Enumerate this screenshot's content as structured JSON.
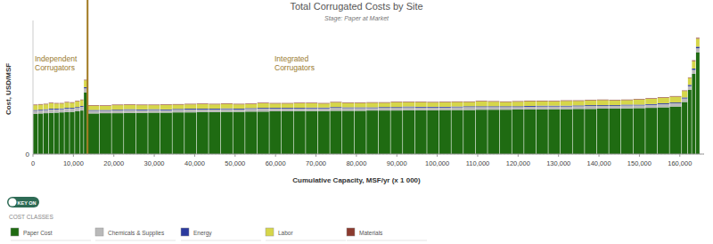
{
  "chart_data": {
    "type": "bar",
    "stacked": true,
    "title": "Total Corrugated Costs by Site",
    "subtitle": "Stage: Paper at Market",
    "y_label": "Cost, USD/MSF",
    "x_label": "Cumulative Capacity, MSF/yr (x 1 000)",
    "annotations": [
      {
        "text": [
          "Independent",
          "Corrugators"
        ]
      },
      {
        "text": [
          "Integrated",
          "Corrugators"
        ]
      }
    ],
    "divider_x": 13500,
    "key_toggle": "KEY ON",
    "legend_title": "COST CLASSES",
    "legend": "bottom",
    "grid": true,
    "xlim": [
      0,
      166000
    ],
    "ylim": [
      0,
      500
    ],
    "xticks": [
      0,
      {
        "value": 10000,
        "label": "10,000"
      },
      {
        "value": 20000,
        "label": "20,000"
      },
      {
        "value": 30000,
        "label": "30,000"
      },
      {
        "value": 40000,
        "label": "40,000"
      },
      {
        "value": 50000,
        "label": "50,000"
      },
      {
        "value": 60000,
        "label": "60,000"
      },
      {
        "value": 70000,
        "label": "70,000"
      },
      {
        "value": 80000,
        "label": "80,000"
      },
      {
        "value": 90000,
        "label": "90,000"
      },
      {
        "value": 100000,
        "label": "100,000"
      },
      {
        "value": 110000,
        "label": "110,000"
      },
      {
        "value": 120000,
        "label": "120,000"
      },
      {
        "value": 130000,
        "label": "130,000"
      },
      {
        "value": 140000,
        "label": "140,000"
      },
      {
        "value": 150000,
        "label": "150,000"
      },
      {
        "value": 160000,
        "label": "160,000"
      }
    ],
    "yticks": [
      0
    ],
    "bins": [
      0,
      1300,
      2600,
      3900,
      5200,
      6500,
      7800,
      9100,
      10400,
      11700,
      12600,
      13500,
      16500,
      19500,
      22500,
      25500,
      28500,
      31500,
      34500,
      37500,
      40500,
      43500,
      46500,
      49500,
      52500,
      55500,
      58500,
      61500,
      64500,
      67500,
      70500,
      73500,
      76500,
      79500,
      82500,
      85500,
      88500,
      91500,
      94500,
      97500,
      100500,
      103500,
      106500,
      109500,
      112500,
      115500,
      118500,
      121500,
      124500,
      127500,
      130500,
      133500,
      136500,
      139500,
      142500,
      145500,
      148500,
      151500,
      154500,
      157500,
      160500,
      162000,
      163000,
      164000,
      165000
    ],
    "series": [
      {
        "name": "Paper Cost",
        "color": "#1f6b12",
        "values": [
          150,
          152,
          153,
          154,
          155,
          156,
          157,
          158,
          160,
          163,
          230,
          152,
          153,
          153,
          154,
          154,
          155,
          155,
          156,
          156,
          157,
          157,
          158,
          158,
          159,
          159,
          160,
          160,
          161,
          161,
          161,
          162,
          162,
          162,
          163,
          163,
          163,
          164,
          164,
          164,
          165,
          165,
          165,
          166,
          166,
          166,
          167,
          167,
          167,
          168,
          168,
          169,
          169,
          170,
          170,
          171,
          172,
          173,
          175,
          178,
          195,
          240,
          300,
          380
        ]
      },
      {
        "name": "Chemicals & Supplies",
        "color": "#b9b9b9",
        "values": [
          12,
          11,
          12,
          13,
          12,
          12,
          13,
          12,
          13,
          14,
          16,
          10,
          9,
          10,
          11,
          10,
          10,
          9,
          10,
          11,
          10,
          10,
          10,
          9,
          10,
          11,
          10,
          10,
          9,
          10,
          10,
          11,
          10,
          10,
          9,
          10,
          10,
          11,
          10,
          10,
          9,
          10,
          11,
          10,
          10,
          10,
          9,
          10,
          11,
          10,
          10,
          10,
          11,
          10,
          10,
          11,
          10,
          11,
          12,
          12,
          13,
          14,
          15,
          16
        ]
      },
      {
        "name": "Energy",
        "color": "#2b3a9e",
        "values": [
          3,
          3,
          3,
          3,
          3,
          3,
          3,
          3,
          3,
          3,
          4,
          3,
          3,
          3,
          3,
          3,
          3,
          3,
          3,
          3,
          3,
          3,
          3,
          3,
          3,
          3,
          3,
          3,
          3,
          3,
          3,
          3,
          3,
          3,
          3,
          3,
          3,
          3,
          3,
          3,
          3,
          3,
          3,
          3,
          3,
          3,
          3,
          3,
          3,
          3,
          3,
          3,
          3,
          3,
          3,
          3,
          3,
          3,
          3,
          3,
          4,
          5,
          5,
          6
        ]
      },
      {
        "name": "Labor",
        "color": "#d6d64a",
        "values": [
          18,
          19,
          18,
          20,
          19,
          18,
          20,
          19,
          21,
          22,
          26,
          16,
          15,
          17,
          16,
          16,
          15,
          17,
          16,
          16,
          17,
          16,
          17,
          16,
          15,
          17,
          16,
          16,
          17,
          16,
          15,
          17,
          16,
          16,
          17,
          16,
          18,
          16,
          17,
          16,
          17,
          17,
          16,
          18,
          17,
          16,
          17,
          18,
          17,
          16,
          18,
          17,
          18,
          19,
          18,
          17,
          19,
          20,
          21,
          22,
          24,
          26,
          28,
          30
        ]
      },
      {
        "name": "Materials",
        "color": "#8b3a2e",
        "values": [
          2,
          2,
          2,
          2,
          2,
          2,
          2,
          2,
          2,
          2,
          2,
          2,
          2,
          2,
          2,
          2,
          2,
          2,
          2,
          2,
          2,
          2,
          2,
          2,
          2,
          2,
          2,
          2,
          2,
          2,
          2,
          2,
          2,
          2,
          2,
          2,
          2,
          2,
          2,
          2,
          2,
          2,
          2,
          2,
          2,
          2,
          2,
          2,
          2,
          2,
          2,
          2,
          2,
          2,
          2,
          2,
          2,
          2,
          2,
          2,
          2,
          2,
          3,
          3
        ]
      }
    ]
  }
}
